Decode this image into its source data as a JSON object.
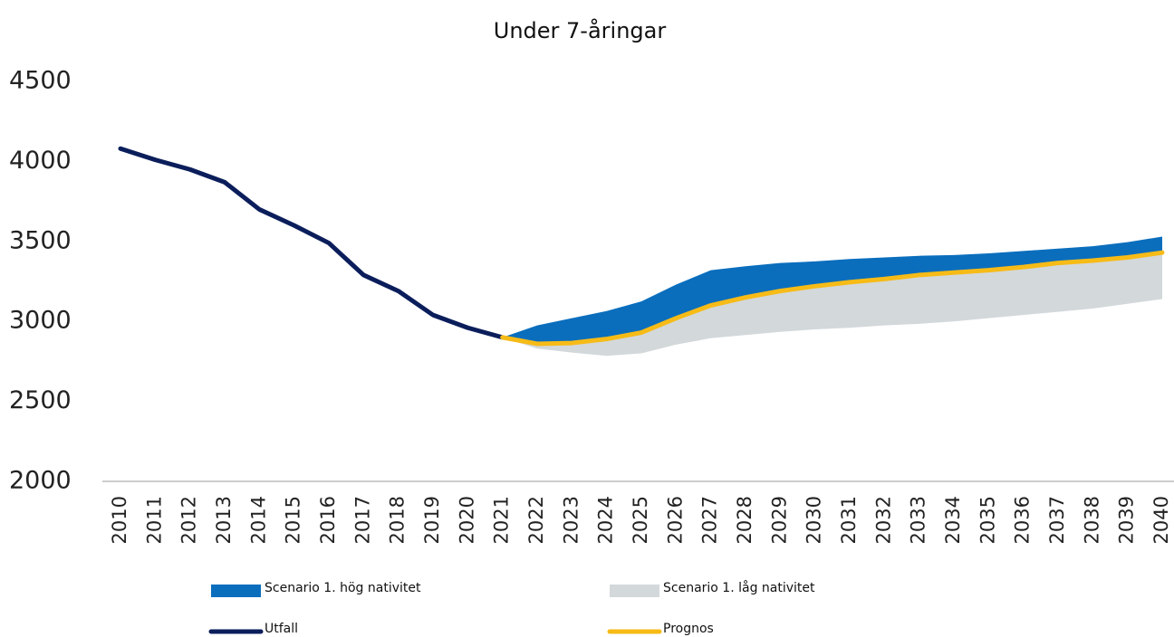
{
  "chart_data": {
    "type": "line",
    "title": "Under 7-åringar",
    "x": [
      2010,
      2011,
      2012,
      2013,
      2014,
      2015,
      2016,
      2017,
      2018,
      2019,
      2020,
      2021,
      2022,
      2023,
      2024,
      2025,
      2026,
      2027,
      2028,
      2029,
      2030,
      2031,
      2032,
      2033,
      2034,
      2035,
      2036,
      2037,
      2038,
      2039,
      2040
    ],
    "series": [
      {
        "name": "Scenario 1. hög nativitet",
        "type": "area",
        "color": "#0a6ebd",
        "values": [
          null,
          null,
          null,
          null,
          null,
          null,
          null,
          null,
          null,
          null,
          null,
          2900,
          2975,
          3020,
          3065,
          3125,
          3230,
          3320,
          3345,
          3365,
          3375,
          3390,
          3400,
          3410,
          3415,
          3425,
          3440,
          3455,
          3470,
          3495,
          3530
        ]
      },
      {
        "name": "Scenario 1. låg nativitet",
        "type": "area",
        "color": "#d3d8db",
        "values": [
          null,
          null,
          null,
          null,
          null,
          null,
          null,
          null,
          null,
          null,
          null,
          2900,
          2830,
          2805,
          2785,
          2800,
          2855,
          2895,
          2915,
          2935,
          2950,
          2960,
          2975,
          2985,
          3000,
          3020,
          3040,
          3060,
          3080,
          3110,
          3140
        ]
      },
      {
        "name": "Utfall",
        "type": "line",
        "color": "#0b1e5b",
        "values": [
          4080,
          4010,
          3950,
          3870,
          3700,
          3600,
          3490,
          3290,
          3190,
          3040,
          2960,
          2900,
          null,
          null,
          null,
          null,
          null,
          null,
          null,
          null,
          null,
          null,
          null,
          null,
          null,
          null,
          null,
          null,
          null,
          null,
          null
        ]
      },
      {
        "name": "Prognos",
        "type": "line",
        "color": "#f7bb17",
        "values": [
          null,
          null,
          null,
          null,
          null,
          null,
          null,
          null,
          null,
          null,
          null,
          2900,
          2860,
          2865,
          2890,
          2930,
          3020,
          3100,
          3150,
          3190,
          3220,
          3245,
          3265,
          3290,
          3305,
          3320,
          3340,
          3365,
          3380,
          3400,
          3430
        ]
      }
    ],
    "ylim": [
      2000,
      4500
    ],
    "yticks": [
      2000,
      2500,
      3000,
      3500,
      4000,
      4500
    ],
    "xlim": [
      2010,
      2040
    ],
    "grid": false,
    "legend": "bottom"
  }
}
